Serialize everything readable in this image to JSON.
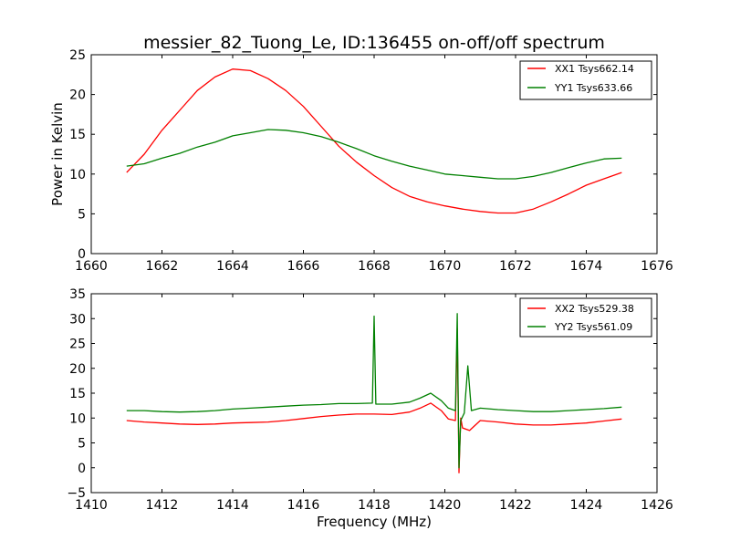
{
  "figure": {
    "title": "messier_82_Tuong_Le, ID:136455 on-off/off spectrum"
  },
  "chart_data": [
    {
      "type": "line",
      "title": "messier_82_Tuong_Le, ID:136455 on-off/off spectrum",
      "xlabel": "",
      "ylabel": "Power in Kelvin",
      "xlim": [
        1660,
        1676
      ],
      "ylim": [
        0,
        25
      ],
      "xticks": [
        1660,
        1662,
        1664,
        1666,
        1668,
        1670,
        1672,
        1674,
        1676
      ],
      "yticks": [
        0,
        5,
        10,
        15,
        20,
        25
      ],
      "grid": false,
      "legend_position": "top-right",
      "series": [
        {
          "name": "XX1 Tsys662.14",
          "color": "#ff0000",
          "x": [
            1661,
            1661.5,
            1662,
            1662.5,
            1663,
            1663.5,
            1664,
            1664.5,
            1665,
            1665.5,
            1666,
            1666.5,
            1667,
            1667.5,
            1668,
            1668.5,
            1669,
            1669.5,
            1670,
            1670.5,
            1671,
            1671.5,
            1672,
            1672.5,
            1673,
            1673.5,
            1674,
            1674.5,
            1675
          ],
          "values": [
            10.2,
            12.5,
            15.5,
            18.0,
            20.5,
            22.2,
            23.2,
            23.0,
            22.0,
            20.5,
            18.5,
            16.0,
            13.5,
            11.5,
            9.8,
            8.3,
            7.2,
            6.5,
            6.0,
            5.6,
            5.3,
            5.1,
            5.1,
            5.6,
            6.5,
            7.5,
            8.6,
            9.4,
            10.2
          ]
        },
        {
          "name": "YY1 Tsys633.66",
          "color": "#008000",
          "x": [
            1661,
            1661.5,
            1662,
            1662.5,
            1663,
            1663.5,
            1664,
            1664.5,
            1665,
            1665.5,
            1666,
            1666.5,
            1667,
            1667.5,
            1668,
            1668.5,
            1669,
            1669.5,
            1670,
            1670.5,
            1671,
            1671.5,
            1672,
            1672.5,
            1673,
            1673.5,
            1674,
            1674.5,
            1675
          ],
          "values": [
            11.0,
            11.3,
            12.0,
            12.6,
            13.4,
            14.0,
            14.8,
            15.2,
            15.6,
            15.5,
            15.2,
            14.7,
            14.0,
            13.2,
            12.3,
            11.6,
            11.0,
            10.5,
            10.0,
            9.8,
            9.6,
            9.4,
            9.4,
            9.7,
            10.2,
            10.8,
            11.4,
            11.9,
            12.0
          ]
        }
      ]
    },
    {
      "type": "line",
      "title": "",
      "xlabel": "Frequency (MHz)",
      "ylabel": "",
      "xlim": [
        1410,
        1426
      ],
      "ylim": [
        -5,
        35
      ],
      "xticks": [
        1410,
        1412,
        1414,
        1416,
        1418,
        1420,
        1422,
        1424,
        1426
      ],
      "yticks": [
        -5,
        0,
        5,
        10,
        15,
        20,
        25,
        30,
        35
      ],
      "grid": false,
      "legend_position": "top-right",
      "series": [
        {
          "name": "XX2 Tsys529.38",
          "color": "#ff0000",
          "x": [
            1411,
            1411.5,
            1412,
            1412.5,
            1413,
            1413.5,
            1414,
            1414.5,
            1415,
            1415.5,
            1416,
            1416.5,
            1417,
            1417.5,
            1418,
            1418.5,
            1419,
            1419.3,
            1419.6,
            1419.9,
            1420.1,
            1420.3,
            1420.35,
            1420.4,
            1420.45,
            1420.5,
            1420.7,
            1421,
            1421.5,
            1422,
            1422.5,
            1423,
            1423.5,
            1424,
            1424.5,
            1425
          ],
          "values": [
            9.5,
            9.2,
            9.0,
            8.8,
            8.7,
            8.8,
            9.0,
            9.1,
            9.2,
            9.5,
            9.9,
            10.3,
            10.6,
            10.8,
            10.8,
            10.7,
            11.2,
            12.0,
            13.0,
            11.5,
            9.8,
            9.5,
            28.0,
            -1.0,
            10.0,
            8.0,
            7.5,
            9.5,
            9.2,
            8.8,
            8.6,
            8.6,
            8.8,
            9.0,
            9.4,
            9.8
          ]
        },
        {
          "name": "YY2 Tsys561.09",
          "color": "#008000",
          "x": [
            1411,
            1411.5,
            1412,
            1412.5,
            1413,
            1413.5,
            1414,
            1414.5,
            1415,
            1415.5,
            1416,
            1416.5,
            1417,
            1417.5,
            1417.95,
            1418.0,
            1418.05,
            1418.5,
            1419,
            1419.3,
            1419.6,
            1419.9,
            1420.1,
            1420.3,
            1420.35,
            1420.4,
            1420.45,
            1420.55,
            1420.65,
            1420.75,
            1421,
            1421.5,
            1422,
            1422.5,
            1423,
            1423.5,
            1424,
            1424.5,
            1425
          ],
          "values": [
            11.5,
            11.5,
            11.3,
            11.2,
            11.3,
            11.5,
            11.8,
            12.0,
            12.2,
            12.4,
            12.6,
            12.7,
            12.9,
            12.9,
            13.0,
            30.5,
            12.8,
            12.8,
            13.2,
            14.0,
            15.0,
            13.5,
            12.0,
            11.5,
            31.0,
            0.0,
            9.5,
            11.0,
            20.5,
            11.5,
            12.0,
            11.7,
            11.5,
            11.3,
            11.3,
            11.5,
            11.7,
            11.9,
            12.2
          ]
        }
      ]
    }
  ]
}
